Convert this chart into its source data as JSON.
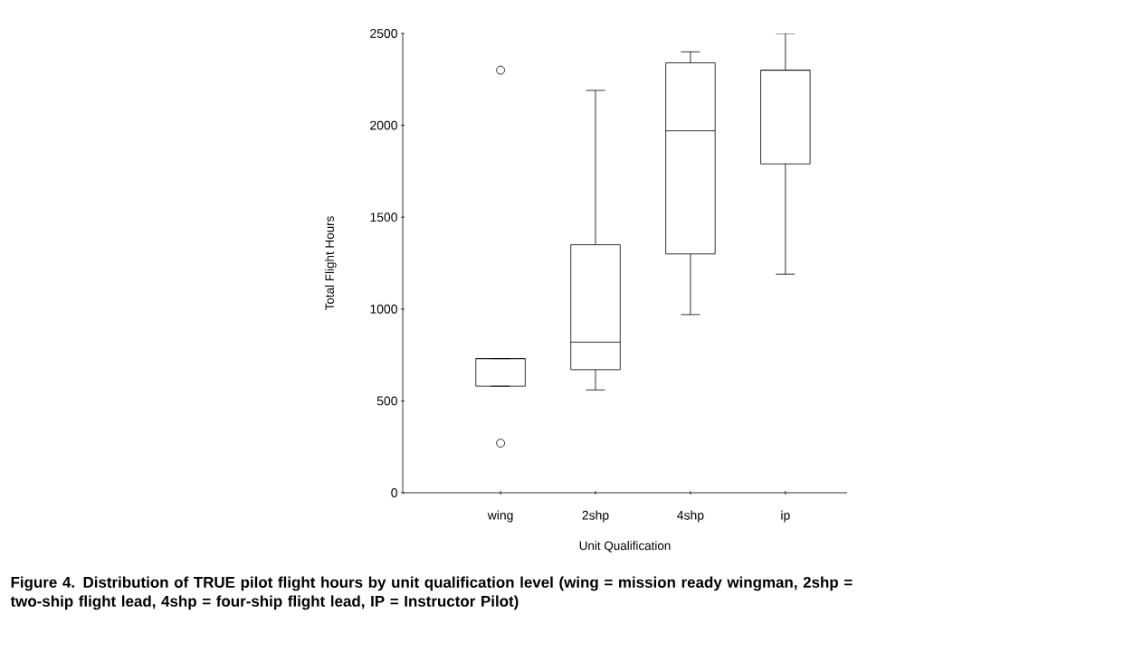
{
  "chart_data": {
    "type": "box",
    "xlabel": "Unit Qualification",
    "ylabel": "Total Flight Hours",
    "categories": [
      "wing",
      "2shp",
      "4shp",
      "ip"
    ],
    "boxes": [
      {
        "low": 580,
        "q1": 580,
        "median": 730,
        "q3": 730,
        "high": 730,
        "outliers": [
          2300,
          270
        ]
      },
      {
        "low": 560,
        "q1": 670,
        "median": 820,
        "q3": 1350,
        "high": 2190
      },
      {
        "low": 970,
        "q1": 1300,
        "median": 1970,
        "q3": 2340,
        "high": 2400
      },
      {
        "low": 1190,
        "q1": 1790,
        "median": 2300,
        "q3": 2300,
        "high": 2500
      }
    ],
    "ylim": [
      0,
      2500
    ],
    "yticks": [
      0,
      500,
      1000,
      1500,
      2000,
      2500
    ],
    "annotations": [
      "Figure 4.  Distribution of TRUE pilot flight hours by unit qualification level (wing = mission ready wingman, 2shp = two-ship flight lead, 4shp = four-ship flight lead, IP = Instructor Pilot)"
    ]
  }
}
